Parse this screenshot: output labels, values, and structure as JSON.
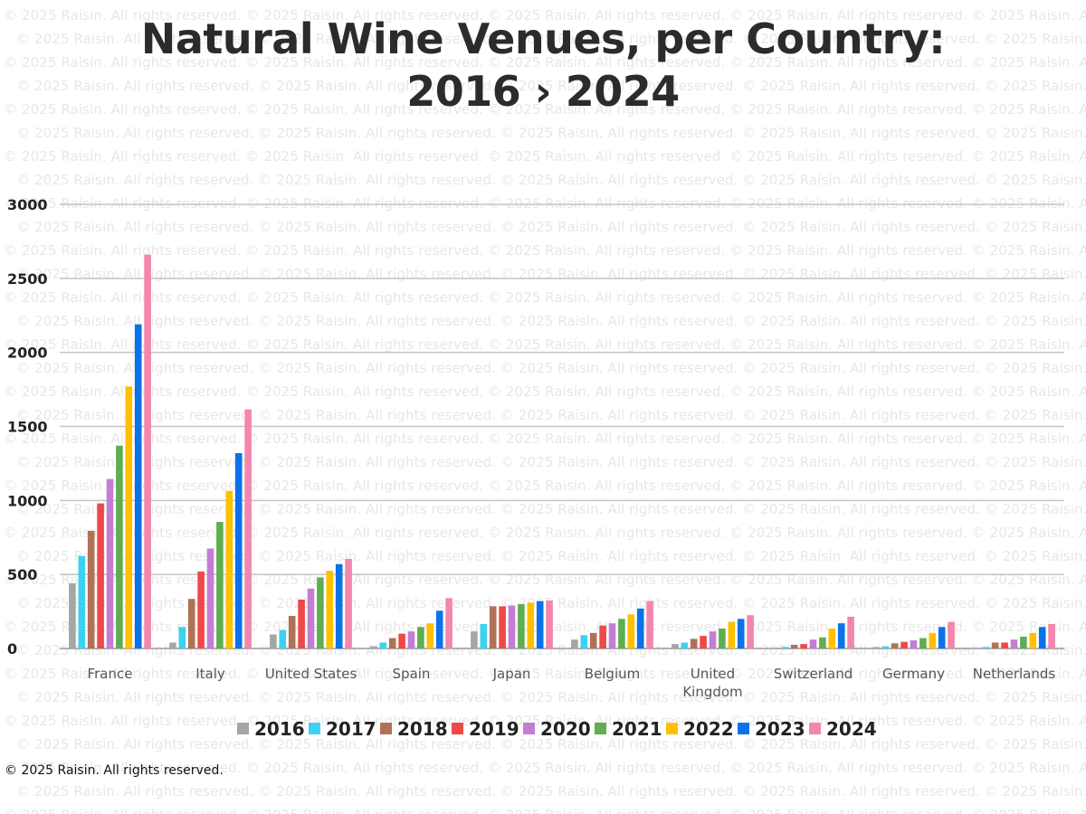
{
  "title_lines": [
    "Natural Wine Venues, per Country:",
    "2016 › 2024"
  ],
  "copyright": "© 2025 Raisin. All rights reserved.",
  "watermark_text": "© 2025 Raisin. All rights reserved.",
  "chart_data": {
    "type": "bar",
    "title": "Natural Wine Venues, per Country: 2016 › 2024",
    "xlabel": "",
    "ylabel": "",
    "ylim": [
      0,
      3000
    ],
    "yticks": [
      0,
      500,
      1000,
      1500,
      2000,
      2500,
      3000
    ],
    "grid": true,
    "legend_position": "bottom",
    "categories": [
      [
        "France"
      ],
      [
        "Italy"
      ],
      [
        "United States"
      ],
      [
        "Spain"
      ],
      [
        "Japan"
      ],
      [
        "Belgium"
      ],
      [
        "United",
        "Kingdom"
      ],
      [
        "Switzerland"
      ],
      [
        "Germany"
      ],
      [
        "Netherlands"
      ]
    ],
    "series": [
      {
        "name": "2016",
        "color": "#a6a6a6",
        "values": [
          440,
          40,
          95,
          15,
          115,
          60,
          30,
          5,
          10,
          5
        ]
      },
      {
        "name": "2017",
        "color": "#3cd2ef",
        "values": [
          625,
          145,
          125,
          40,
          165,
          90,
          40,
          10,
          15,
          10
        ]
      },
      {
        "name": "2018",
        "color": "#b07255",
        "values": [
          795,
          335,
          220,
          70,
          285,
          105,
          65,
          25,
          35,
          40
        ]
      },
      {
        "name": "2019",
        "color": "#ef4848",
        "values": [
          980,
          520,
          330,
          100,
          285,
          155,
          85,
          30,
          45,
          40
        ]
      },
      {
        "name": "2020",
        "color": "#c57dd4",
        "values": [
          1145,
          675,
          405,
          115,
          290,
          170,
          115,
          60,
          55,
          60
        ]
      },
      {
        "name": "2021",
        "color": "#5fae52",
        "values": [
          1370,
          855,
          480,
          145,
          300,
          200,
          135,
          75,
          70,
          80
        ]
      },
      {
        "name": "2022",
        "color": "#ffc000",
        "values": [
          1770,
          1065,
          525,
          170,
          310,
          230,
          180,
          135,
          105,
          105
        ]
      },
      {
        "name": "2023",
        "color": "#0b72ea",
        "values": [
          2190,
          1320,
          570,
          255,
          320,
          270,
          200,
          170,
          145,
          145
        ]
      },
      {
        "name": "2024",
        "color": "#f286ac",
        "values": [
          2660,
          1615,
          605,
          340,
          325,
          320,
          225,
          215,
          180,
          165
        ]
      }
    ]
  }
}
